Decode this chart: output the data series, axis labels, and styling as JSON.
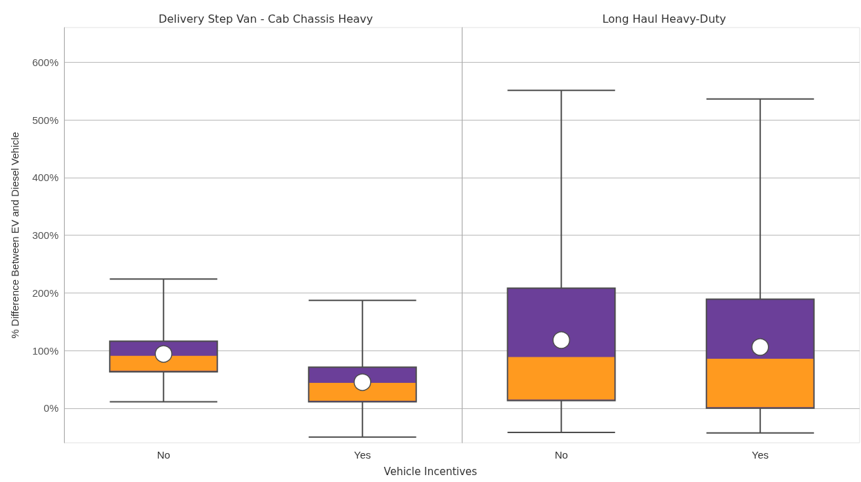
{
  "chart_data": [
    {
      "type": "box",
      "title": "Delivery Step Van - Cab Chassis Heavy",
      "xlabel": "Vehicle Incentives",
      "ylabel": "% Difference Between EV and Diesel Vehicle",
      "categories": [
        "No",
        "Yes"
      ],
      "series": [
        {
          "color": "#6b3f99",
          "colors": [
            "#ff9a1f",
            "#ff9a1f"
          ],
          "boxes": [
            {
              "low": 11,
              "q1": 63,
              "median": 89,
              "q3": 116,
              "high": 224,
              "mean": 94
            },
            {
              "low": -50,
              "q1": 11,
              "median": 42,
              "q3": 71,
              "high": 187,
              "mean": 45
            }
          ]
        }
      ],
      "marker": "circle",
      "grid": "y",
      "ylim": [
        -60,
        660
      ],
      "yticks": [
        {
          "value": 0,
          "label": "0%"
        },
        {
          "value": 100,
          "label": "100%"
        },
        {
          "value": 200,
          "label": "200%"
        },
        {
          "value": 300,
          "label": "300%"
        },
        {
          "value": 400,
          "label": "400%"
        },
        {
          "value": 500,
          "label": "500%"
        },
        {
          "value": 600,
          "label": "600%"
        }
      ]
    },
    {
      "type": "box",
      "title": "Long Haul Heavy-Duty",
      "categories": [
        "No",
        "Yes"
      ],
      "series": [
        {
          "color": "#6b3f99",
          "colors": [
            "#ff9a1f",
            "#ff9a1f"
          ],
          "boxes": [
            {
              "low": -42,
              "q1": 13,
              "median": 87,
              "q3": 208,
              "high": 551,
              "mean": 118
            },
            {
              "low": -43,
              "q1": 0,
              "median": 84,
              "q3": 189,
              "high": 536,
              "mean": 106
            }
          ]
        }
      ],
      "marker": "circle",
      "grid": "y",
      "tick_labels": "x",
      "ylim": [
        -60,
        660
      ],
      "yticks": [
        0,
        100,
        200,
        300,
        400,
        500,
        600
      ]
    }
  ]
}
